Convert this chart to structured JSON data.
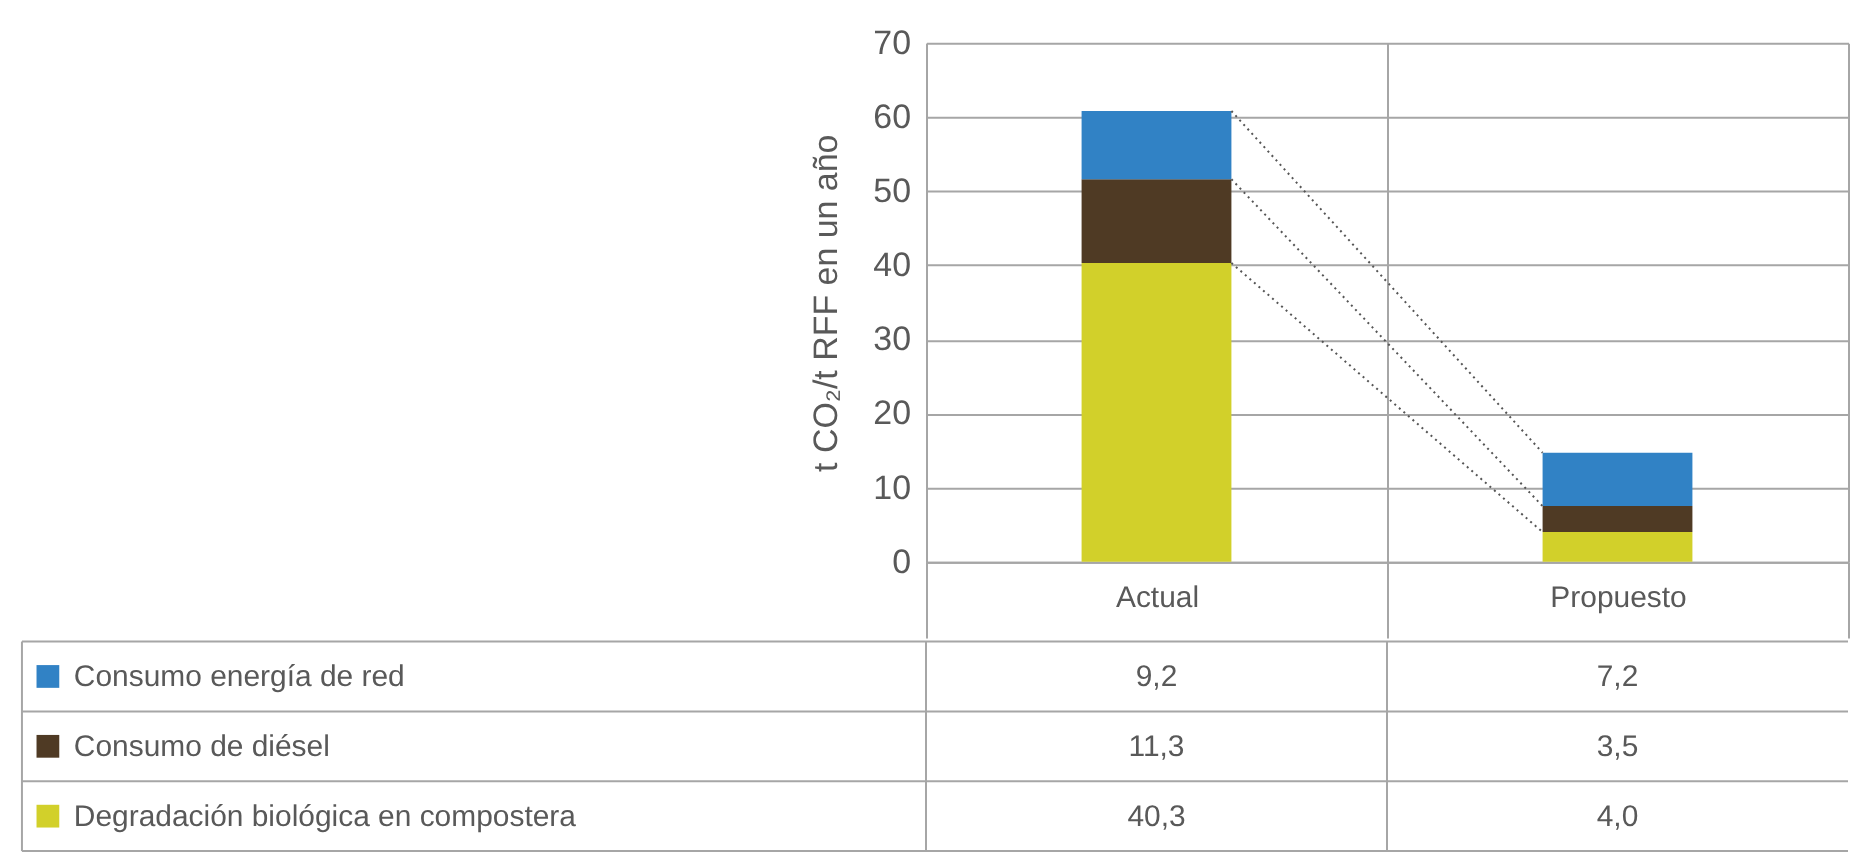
{
  "chart_data": {
    "type": "bar",
    "stacked": true,
    "ylabel": "t CO₂/t RFF en un año",
    "categories": [
      "Actual",
      "Propuesto"
    ],
    "series": [
      {
        "name": "Degradación biológica en compostera",
        "color": "#d2d02a",
        "values": [
          40.3,
          4.0
        ],
        "value_labels": [
          "40,3",
          "4,0"
        ]
      },
      {
        "name": "Consumo de diésel",
        "color": "#4f3a24",
        "values": [
          11.3,
          3.5
        ],
        "value_labels": [
          "11,3",
          "3,5"
        ]
      },
      {
        "name": "Consumo energía de red",
        "color": "#3182c5",
        "values": [
          9.2,
          7.2
        ],
        "value_labels": [
          "9,2",
          "7,2"
        ]
      }
    ],
    "ylim": [
      0,
      70
    ],
    "yticks": [
      0,
      10,
      20,
      30,
      40,
      50,
      60,
      70
    ],
    "grid": true,
    "legend": "bottom left"
  }
}
